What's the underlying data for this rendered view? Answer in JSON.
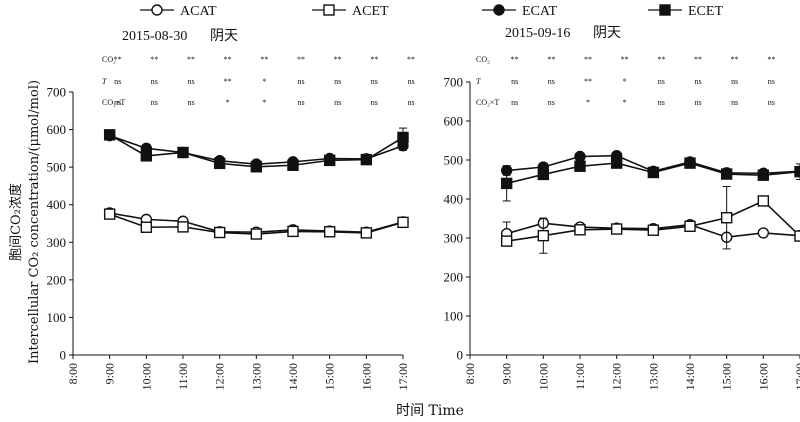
{
  "chart_data": {
    "type": "line",
    "legend": {
      "placement": "top",
      "entries": [
        {
          "name": "ACAT",
          "marker": "open-circle"
        },
        {
          "name": "ACET",
          "marker": "open-square"
        },
        {
          "name": "ECAT",
          "marker": "filled-circle"
        },
        {
          "name": "ECET",
          "marker": "filled-square"
        }
      ]
    },
    "ylabel_cn": "胞间CO₂浓度",
    "ylabel_en": "Intercellular CO₂ concentration/(μmol/mol)",
    "xlabel": "时间  Time",
    "x_ticks": [
      "8:00",
      "9:00",
      "10:00",
      "11:00",
      "12:00",
      "13:00",
      "14:00",
      "15:00",
      "16:00",
      "17:00"
    ],
    "ylim": [
      0,
      700
    ],
    "y_ticks": [
      "0",
      "100",
      "200",
      "300",
      "400",
      "500",
      "600",
      "700"
    ],
    "sig_row_labels": [
      "CO₂",
      "T",
      "CO₂×T"
    ],
    "panels": [
      {
        "date": "2015-08-30",
        "weather": "阴天",
        "x": [
          "9:00",
          "10:00",
          "11:00",
          "12:00",
          "13:00",
          "14:00",
          "15:00",
          "16:00",
          "17:00"
        ],
        "series": [
          {
            "name": "ACAT",
            "values": [
              378,
              361,
              356,
              328,
              327,
              333,
              330,
              327,
              354
            ],
            "err": [
              8,
              6,
              5,
              4,
              5,
              6,
              5,
              5,
              6
            ]
          },
          {
            "name": "ACET",
            "values": [
              375,
              340,
              341,
              326,
              322,
              329,
              328,
              325,
              353
            ],
            "err": [
              8,
              8,
              6,
              4,
              6,
              5,
              5,
              4,
              6
            ]
          },
          {
            "name": "ECAT",
            "values": [
              584,
              550,
              539,
              517,
              508,
              514,
              523,
              522,
              557
            ],
            "err": [
              8,
              10,
              8,
              6,
              6,
              7,
              6,
              7,
              12
            ]
          },
          {
            "name": "ECET",
            "values": [
              586,
              530,
              539,
              510,
              501,
              505,
              518,
              520,
              579
            ],
            "err": [
              8,
              10,
              7,
              6,
              6,
              6,
              7,
              6,
              25
            ]
          }
        ],
        "sig": [
          [
            "**",
            "**",
            "**",
            "**",
            "**",
            "**",
            "**",
            "**",
            "**"
          ],
          [
            "ns",
            "ns",
            "ns",
            "**",
            "*",
            "ns",
            "ns",
            "ns",
            "ns"
          ],
          [
            "ns",
            "ns",
            "ns",
            "*",
            "*",
            "ns",
            "ns",
            "ns",
            "ns"
          ]
        ]
      },
      {
        "date": "2015-09-16",
        "weather": "阴天",
        "x": [
          "9:00",
          "10:00",
          "11:00",
          "12:00",
          "13:00",
          "14:00",
          "15:00",
          "16:00",
          "17:00"
        ],
        "series": [
          {
            "name": "ACAT",
            "values": [
              311,
              338,
              328,
              325,
              324,
              334,
              302,
              313,
              306
            ],
            "err": [
              30,
              10,
              7,
              5,
              5,
              6,
              7,
              5,
              6
            ]
          },
          {
            "name": "ACET",
            "values": [
              292,
              306,
              321,
              323,
              320,
              330,
              352,
              395,
              305
            ],
            "err": [
              10,
              45,
              8,
              6,
              6,
              7,
              80,
              10,
              6
            ]
          },
          {
            "name": "ECAT",
            "values": [
              473,
              482,
              509,
              511,
              471,
              495,
              467,
              466,
              471
            ],
            "err": [
              12,
              10,
              8,
              6,
              8,
              7,
              8,
              8,
              10
            ]
          },
          {
            "name": "ECET",
            "values": [
              440,
              463,
              484,
              492,
              468,
              492,
              464,
              461,
              470
            ],
            "err": [
              45,
              12,
              10,
              8,
              8,
              7,
              8,
              7,
              20
            ]
          }
        ],
        "sig": [
          [
            "**",
            "**",
            "**",
            "**",
            "**",
            "**",
            "**",
            "**",
            "**"
          ],
          [
            "ns",
            "ns",
            "**",
            "*",
            "ns",
            "ns",
            "ns",
            "ns",
            "ns"
          ],
          [
            "ns",
            "ns",
            "*",
            "*",
            "ns",
            "ns",
            "ns",
            "ns",
            "ns"
          ]
        ]
      }
    ]
  }
}
